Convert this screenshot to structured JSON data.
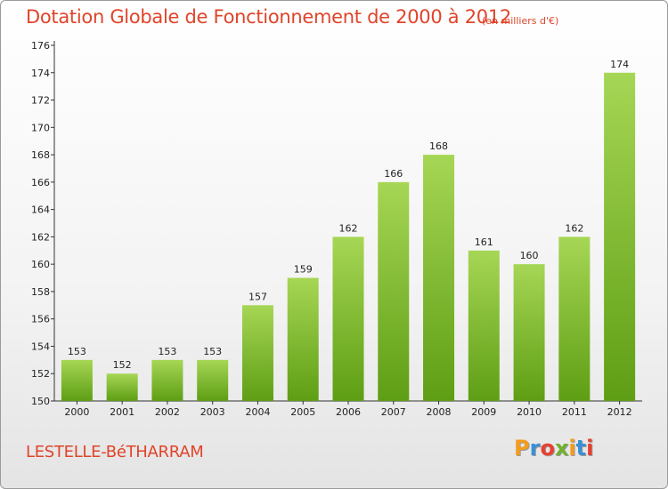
{
  "title": "Dotation Globale de Fonctionnement de 2000 à 2012",
  "unit_note": "(en milliers d'€)",
  "commune": "LESTELLE-BéTHARRAM",
  "logo": {
    "letters": [
      "P",
      "r",
      "o",
      "x",
      "i",
      "t",
      "i"
    ],
    "colors": [
      "#f39c1f",
      "#3a8fd6",
      "#e8402f",
      "#6fb22b",
      "#f39c1f",
      "#3a8fd6",
      "#e8402f"
    ]
  },
  "colors": {
    "bar_top": "#a6d655",
    "bar_bottom": "#5e9e14",
    "title": "#e0442a"
  },
  "chart_data": {
    "type": "bar",
    "title": "Dotation Globale de Fonctionnement de 2000 à 2012",
    "xlabel": "",
    "ylabel": "",
    "categories": [
      "2000",
      "2001",
      "2002",
      "2003",
      "2004",
      "2005",
      "2006",
      "2007",
      "2008",
      "2009",
      "2010",
      "2011",
      "2012"
    ],
    "values": [
      153,
      152,
      153,
      153,
      157,
      159,
      162,
      166,
      168,
      161,
      160,
      162,
      174
    ],
    "ylim": [
      150,
      176
    ],
    "yticks": [
      150,
      152,
      154,
      156,
      158,
      160,
      162,
      164,
      166,
      168,
      170,
      172,
      174,
      176
    ],
    "grid": false
  }
}
